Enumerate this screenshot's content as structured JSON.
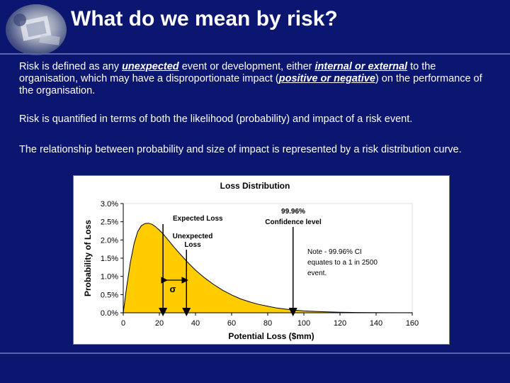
{
  "title": "What do we mean by risk?",
  "paragraph1": {
    "part1": "Risk is defined as any ",
    "em1": "unexpected",
    "part2": " event or development, either ",
    "em2": "internal or external",
    "part3": " to the organisation, which may have a disproportionate impact (",
    "em3": "positive or negative",
    "part4": ") on the performance of the organisation."
  },
  "paragraph2": "Risk is quantified in terms of both the likelihood (probability) and impact of a risk event.",
  "paragraph3": "The relationship between probability and size of impact is represented by a risk distribution curve.",
  "chart_data": {
    "type": "area",
    "title": "Loss Distribution",
    "xlabel": "Potential Loss ($mm)",
    "ylabel": "Probability of Loss",
    "xlim": [
      0,
      160
    ],
    "ylim": [
      0,
      0.03
    ],
    "x_ticks": [
      "0",
      "20",
      "40",
      "60",
      "80",
      "100",
      "120",
      "140",
      "160"
    ],
    "y_ticks": [
      "0.0%",
      "0.5%",
      "1.0%",
      "1.5%",
      "2.0%",
      "2.5%",
      "3.0%"
    ],
    "x_tick_values": [
      0,
      20,
      40,
      60,
      80,
      100,
      120,
      140,
      160
    ],
    "y_tick_values": [
      0,
      0.005,
      0.01,
      0.015,
      0.02,
      0.025,
      0.03
    ],
    "grid": false,
    "fill_color": "#ffcc00",
    "series": [
      {
        "x": [
          0,
          2,
          4,
          6,
          8,
          10,
          12,
          14,
          16,
          18,
          20,
          22,
          25,
          28,
          31,
          35,
          40,
          45,
          50,
          55,
          60,
          65,
          70,
          75,
          80,
          85,
          90,
          95,
          100,
          110,
          120,
          130,
          140,
          150,
          160
        ],
        "values": [
          0.0,
          0.0075,
          0.014,
          0.019,
          0.0223,
          0.0239,
          0.0245,
          0.0246,
          0.0243,
          0.0236,
          0.0227,
          0.0217,
          0.0199,
          0.0181,
          0.0164,
          0.0142,
          0.0117,
          0.0096,
          0.0078,
          0.0062,
          0.0049,
          0.0038,
          0.003,
          0.0023,
          0.0018,
          0.0013,
          0.001,
          0.0007,
          0.0005,
          0.0003,
          0.00015,
          8e-05,
          4e-05,
          2e-05,
          1e-05
        ]
      }
    ],
    "markers": {
      "expected_loss": {
        "label": "Expected Loss",
        "x": 22
      },
      "unexpected_loss": {
        "label_line1": "Unexpected",
        "label_line2": "Loss",
        "x": 35
      },
      "confidence": {
        "label_line1": "99.96%",
        "label_line2": "Confidence level",
        "x": 94
      }
    },
    "sigma_label": "σ",
    "note": [
      "Note - 99.96% CI",
      "equates to a 1 in 2500",
      "event."
    ]
  }
}
